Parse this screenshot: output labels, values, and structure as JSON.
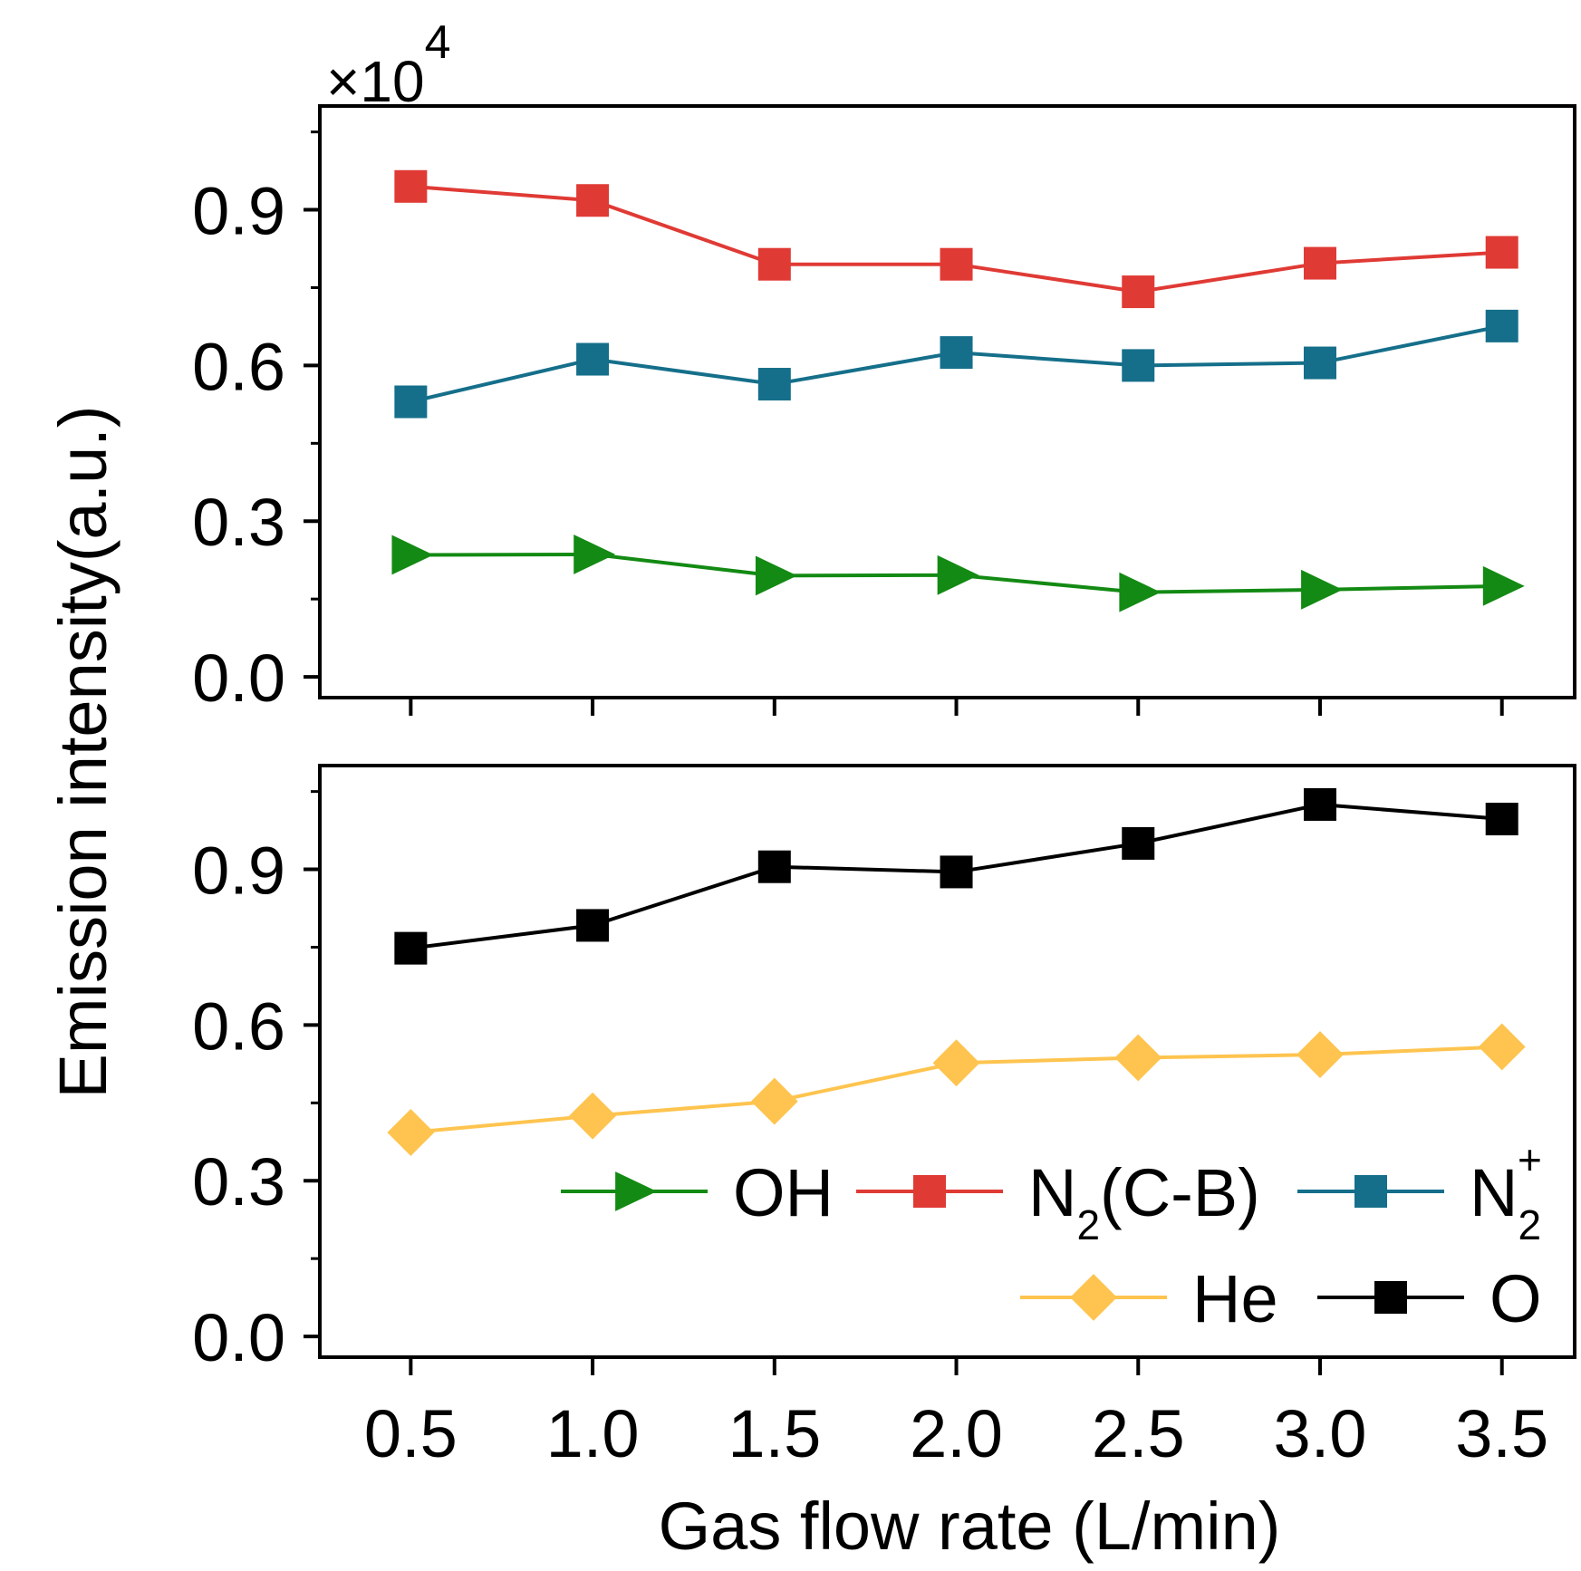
{
  "chart_data": {
    "type": "line",
    "ylabel": "Emission intensity(a.u.)",
    "xlabel": "Gas flow rate (L/min)",
    "multiplier": "×10",
    "multiplier_exp": "4",
    "x": [
      0.5,
      1.0,
      1.5,
      2.0,
      2.5,
      3.0,
      3.5
    ],
    "x_tick_labels": [
      "0.5",
      "1.0",
      "1.5",
      "2.0",
      "2.5",
      "3.0",
      "3.5"
    ],
    "xlim": [
      0.25,
      3.7
    ],
    "panels": [
      {
        "id": "top",
        "ylim": [
          -0.04,
          1.1
        ],
        "y_ticks": [
          0.0,
          0.3,
          0.6,
          0.9
        ],
        "y_tick_labels": [
          "0.0",
          "0.3",
          "0.6",
          "0.9"
        ],
        "series": [
          {
            "name": "N2(C-B)",
            "color": "#e03a35",
            "marker": "square",
            "values": [
              0.945,
              0.918,
              0.795,
              0.795,
              0.742,
              0.797,
              0.818
            ]
          },
          {
            "name": "N2+",
            "color": "#156f8a",
            "marker": "square",
            "values": [
              0.53,
              0.612,
              0.564,
              0.625,
              0.6,
              0.605,
              0.676
            ]
          },
          {
            "name": "OH",
            "color": "#138a13",
            "marker": "triangle-right",
            "values": [
              0.235,
              0.236,
              0.195,
              0.196,
              0.163,
              0.168,
              0.175
            ]
          }
        ]
      },
      {
        "id": "bottom",
        "ylim": [
          -0.04,
          1.1
        ],
        "y_ticks": [
          0.0,
          0.3,
          0.6,
          0.9
        ],
        "y_tick_labels": [
          "0.0",
          "0.3",
          "0.6",
          "0.9"
        ],
        "series": [
          {
            "name": "O",
            "color": "#000000",
            "marker": "square",
            "values": [
              0.748,
              0.792,
              0.905,
              0.895,
              0.95,
              1.025,
              0.997
            ]
          },
          {
            "name": "He",
            "color": "#fec44f",
            "marker": "diamond",
            "values": [
              0.393,
              0.425,
              0.453,
              0.527,
              0.537,
              0.543,
              0.558
            ]
          }
        ]
      }
    ],
    "legend": {
      "placement": "bottom-panel lower-right",
      "rows": [
        [
          {
            "series": "OH",
            "label": "OH",
            "color": "#138a13",
            "marker": "triangle-right"
          },
          {
            "series": "N2(C-B)",
            "label": "N",
            "sub": "2",
            "sup": "",
            "tail": "(C-B)",
            "color": "#e03a35",
            "marker": "square"
          },
          {
            "series": "N2+",
            "label": "N",
            "sub": "2",
            "sup": "+",
            "tail": "",
            "color": "#156f8a",
            "marker": "square"
          }
        ],
        [
          {
            "series": "He",
            "label": "He",
            "color": "#fec44f",
            "marker": "diamond"
          },
          {
            "series": "O",
            "label": "O",
            "color": "#000000",
            "marker": "square"
          }
        ]
      ]
    }
  }
}
